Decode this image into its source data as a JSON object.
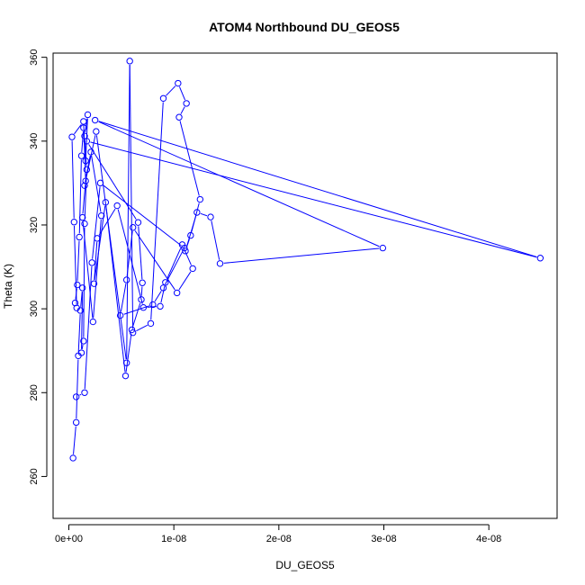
{
  "colors": {
    "series": "#0000ff",
    "axis": "#000000",
    "background": "#ffffff"
  },
  "chart_data": {
    "type": "line",
    "markers": "open-circle",
    "title": "ATOM4 Northbound DU_GEOS5",
    "xlabel": "DU_GEOS5",
    "ylabel": "Theta (K)",
    "xlim": [
      -1.5e-09,
      4.65e-08
    ],
    "ylim": [
      250,
      361
    ],
    "grid": false,
    "legend": "none",
    "xticks": [
      0,
      1e-08,
      2e-08,
      3e-08,
      4e-08
    ],
    "xtick_labels": [
      "0e+00",
      "1e-08",
      "2e-08",
      "3e-08",
      "4e-08"
    ],
    "yticks": [
      260,
      280,
      300,
      320,
      340,
      360
    ],
    "ytick_labels": [
      "260",
      "280",
      "300",
      "320",
      "340",
      "360"
    ],
    "series": [
      {
        "x": [
          4e-10,
          7e-10,
          9e-10,
          1.1e-09,
          1.3e-09,
          1.2e-09,
          1.4e-09,
          1.5e-09,
          1.7e-09,
          1.5e-09,
          1.8e-09,
          1.6e-09,
          1.4e-09,
          1.2e-09,
          1e-09,
          8e-10,
          6e-10,
          7.5e-10,
          5e-10,
          3e-10,
          1.4e-09,
          1.6e-09,
          1.3e-09,
          2.3e-09,
          3.1e-09,
          2.1e-09,
          1.5e-09,
          2.6e-09,
          5.5e-09,
          5.8e-09,
          6.1e-09,
          7.8e-09,
          9e-09,
          1.04e-08,
          1.12e-08,
          1.05e-08,
          1.25e-08,
          1.16e-08,
          1.11e-08,
          1.22e-08,
          1.35e-08,
          1.44e-08,
          2.99e-08,
          2.5e-09,
          4.49e-08,
          1.7e-09,
          6.6e-09,
          7e-09,
          6.9e-09,
          6e-09,
          5.4e-09,
          3.5e-09,
          2.4e-09,
          2.7e-09,
          4.6e-09,
          7.1e-09,
          8.7e-09,
          9.2e-09,
          1.08e-08,
          1.18e-08,
          1.03e-08,
          6.1e-09,
          5.5e-09,
          4.9e-09,
          8e-09,
          9e-09,
          1.1e-08,
          3e-09,
          2.2e-09,
          1.5e-09,
          7e-10
        ],
        "y": [
          264.4,
          272.9,
          288.8,
          299.6,
          305.0,
          289.5,
          292.3,
          320.3,
          333.2,
          341.2,
          346.3,
          335.3,
          343.2,
          336.5,
          317.1,
          305.7,
          301.4,
          300.2,
          320.7,
          341.0,
          344.7,
          330.5,
          321.8,
          296.9,
          322.2,
          337.4,
          329.4,
          342.3,
          287.1,
          359.1,
          294.3,
          296.5,
          350.2,
          353.8,
          349.0,
          345.7,
          326.1,
          317.5,
          313.8,
          323.0,
          321.9,
          310.8,
          314.5,
          345.0,
          312.1,
          340.0,
          320.6,
          306.2,
          302.2,
          295.0,
          284.0,
          325.4,
          306.0,
          316.8,
          324.6,
          300.3,
          300.6,
          306.3,
          315.3,
          309.6,
          303.8,
          319.4,
          306.9,
          298.4,
          301.0,
          305.0,
          314.5,
          330.0,
          311.0,
          280.0,
          279.0
        ]
      }
    ]
  }
}
